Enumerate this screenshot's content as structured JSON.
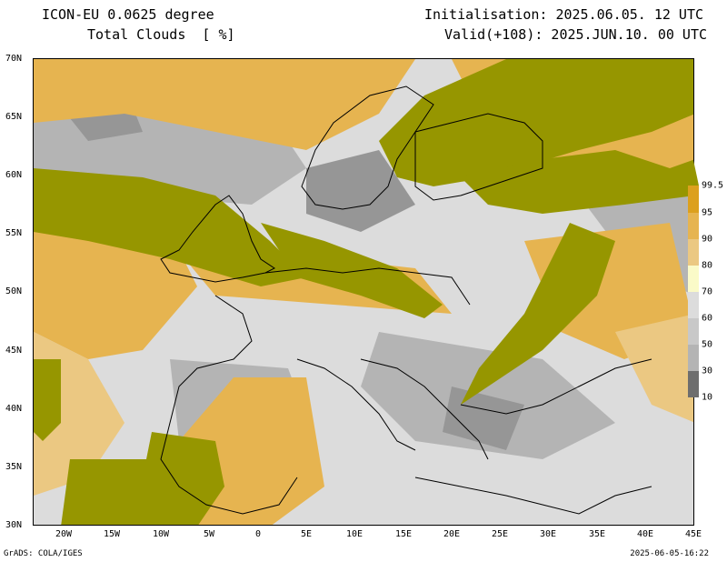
{
  "header": {
    "model": "ICON-EU 0.0625 degree",
    "field": "Total Clouds  [ %]",
    "init": "Initialisation: 2025.06.05. 12 UTC",
    "valid": "Valid(+108): 2025.JUN.10. 00 UTC"
  },
  "axes": {
    "lat_labels": [
      "70N",
      "65N",
      "60N",
      "55N",
      "50N",
      "45N",
      "40N",
      "35N",
      "30N"
    ],
    "lon_labels": [
      "20W",
      "15W",
      "10W",
      "5W",
      "0",
      "5E",
      "10E",
      "15E",
      "20E",
      "25E",
      "30E",
      "35E",
      "40E",
      "45E"
    ],
    "lat_range": [
      30,
      70
    ],
    "lon_range": [
      -23,
      45
    ]
  },
  "colorbar": {
    "levels": [
      "99.5",
      "95",
      "90",
      "80",
      "70",
      "60",
      "50",
      "30",
      "10"
    ],
    "colors": [
      "#969600",
      "#dca01e",
      "#e6b450",
      "#ebc882",
      "#f0dcb4",
      "#fafac8",
      "#dcdcdc",
      "#b4b4b4",
      "#969696",
      "#6e6e6e"
    ]
  },
  "footer": {
    "left": "GrADS: COLA/IGES",
    "right": "2025-06-05-16:22"
  }
}
